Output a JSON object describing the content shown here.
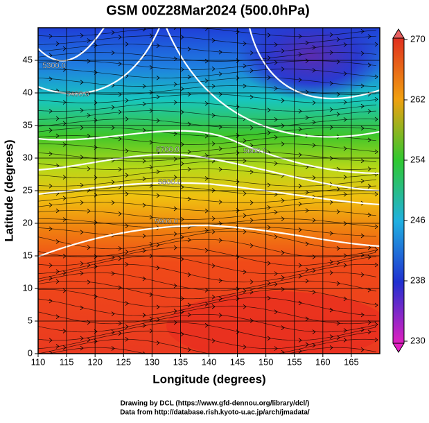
{
  "chart_data": {
    "type": "map",
    "title": "GSM 00Z28Mar2024 (500.0hPa)",
    "x_label": "Longitude (degrees)",
    "y_label": "Latitude  (degrees)",
    "xlim": [
      110,
      170
    ],
    "ylim": [
      0,
      50
    ],
    "xticks": [
      110,
      115,
      120,
      125,
      130,
      135,
      140,
      145,
      150,
      155,
      160,
      165
    ],
    "yticks": [
      0,
      5,
      10,
      15,
      20,
      25,
      30,
      35,
      40,
      45
    ],
    "grid": true,
    "colorbar": {
      "lim": [
        230,
        270
      ],
      "ticks": [
        230,
        238,
        246,
        254,
        262,
        270
      ]
    },
    "contours": [
      {
        "value": 5300,
        "label": "5300.0"
      },
      {
        "value": 5400,
        "label": "5400.0"
      },
      {
        "value": 5600,
        "label": "5600.0"
      },
      {
        "value": 5700,
        "label": "5700.0"
      },
      {
        "value": 5800,
        "label": "5800.0"
      },
      {
        "value": 5900,
        "label": "5900.0"
      }
    ]
  },
  "credits": [
    "Drawing by DCL (https://www.gfd-dennou.org/library/dcl/)",
    "Data from http://database.rish.kyoto-u.ac.jp/arch/jmadata/"
  ]
}
